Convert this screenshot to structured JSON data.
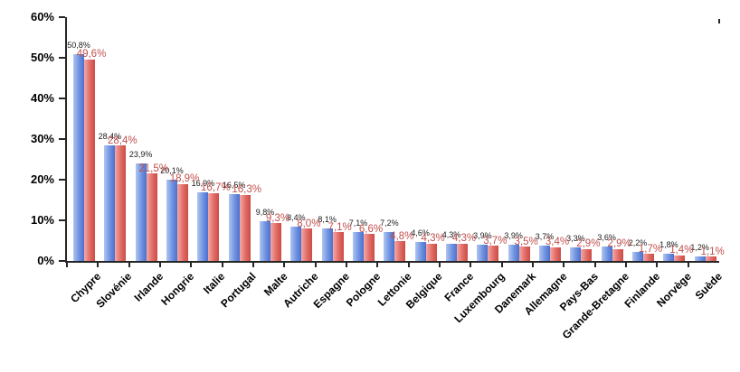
{
  "chart_data": {
    "type": "bar",
    "title": "",
    "xlabel": "",
    "ylabel": "",
    "ylim": [
      0,
      60
    ],
    "grid": false,
    "legend": "none",
    "yticks": [
      "0%",
      "10%",
      "20%",
      "30%",
      "40%",
      "50%",
      "60%"
    ],
    "categories": [
      "Chypre",
      "Slovénie",
      "Irlande",
      "Hongrie",
      "Italie",
      "Portugal",
      "Malte",
      "Autriche",
      "Espagne",
      "Pologne",
      "Lettonie",
      "Belgique",
      "France",
      "Luxembourg",
      "Danemark",
      "Allemagne",
      "Pays-Bas",
      "Grande-Bretagne",
      "Finlande",
      "Norvège",
      "Suède"
    ],
    "series": [
      {
        "name": "blue",
        "color_light": "#AFC6F2",
        "color_mid": "#6F92E0",
        "color_dark": "#4A70CE",
        "label_color": "#1A1A1A",
        "values": [
          50.8,
          28.4,
          23.9,
          20.1,
          16.9,
          16.5,
          9.8,
          8.4,
          8.1,
          7.1,
          7.2,
          4.6,
          4.3,
          3.9,
          3.9,
          3.7,
          3.3,
          3.6,
          2.2,
          1.8,
          1.2
        ],
        "labels": [
          "50,8%",
          "28,4%",
          "23,9%",
          "20,1%",
          "16,9%",
          "16,5%",
          "9,8%",
          "8,4%",
          "8,1%",
          "7,1%",
          "7,2%",
          "4,6%",
          "4,3%",
          "3,9%",
          "3,9%",
          "3,7%",
          "3,3%",
          "3,6%",
          "2,2%",
          "1,8%",
          "1,2%"
        ]
      },
      {
        "name": "red",
        "color_light": "#F4A9A6",
        "color_mid": "#E06B66",
        "color_dark": "#CC4B45",
        "label_color": "#C0504D",
        "values": [
          49.6,
          28.4,
          21.5,
          18.9,
          16.7,
          16.3,
          9.3,
          8.0,
          7.1,
          6.6,
          4.8,
          4.3,
          4.3,
          3.7,
          3.5,
          3.4,
          2.9,
          2.9,
          1.7,
          1.4,
          1.1
        ],
        "labels": [
          "49,6%",
          "28,4%",
          "21,5%",
          "18,9%",
          "16,7%",
          "16,3%",
          "9,3%",
          "8,0%",
          "7,1%",
          "6,6%",
          "4,8%",
          "4,3%",
          "4,3%",
          "3,7%",
          "3,5%",
          "3,4%",
          "2,9%",
          "2,9%",
          "1,7%",
          "1,4%",
          "1,1%"
        ]
      }
    ],
    "colors": {
      "axis": "#262626",
      "background": "#FFFFFF"
    }
  }
}
